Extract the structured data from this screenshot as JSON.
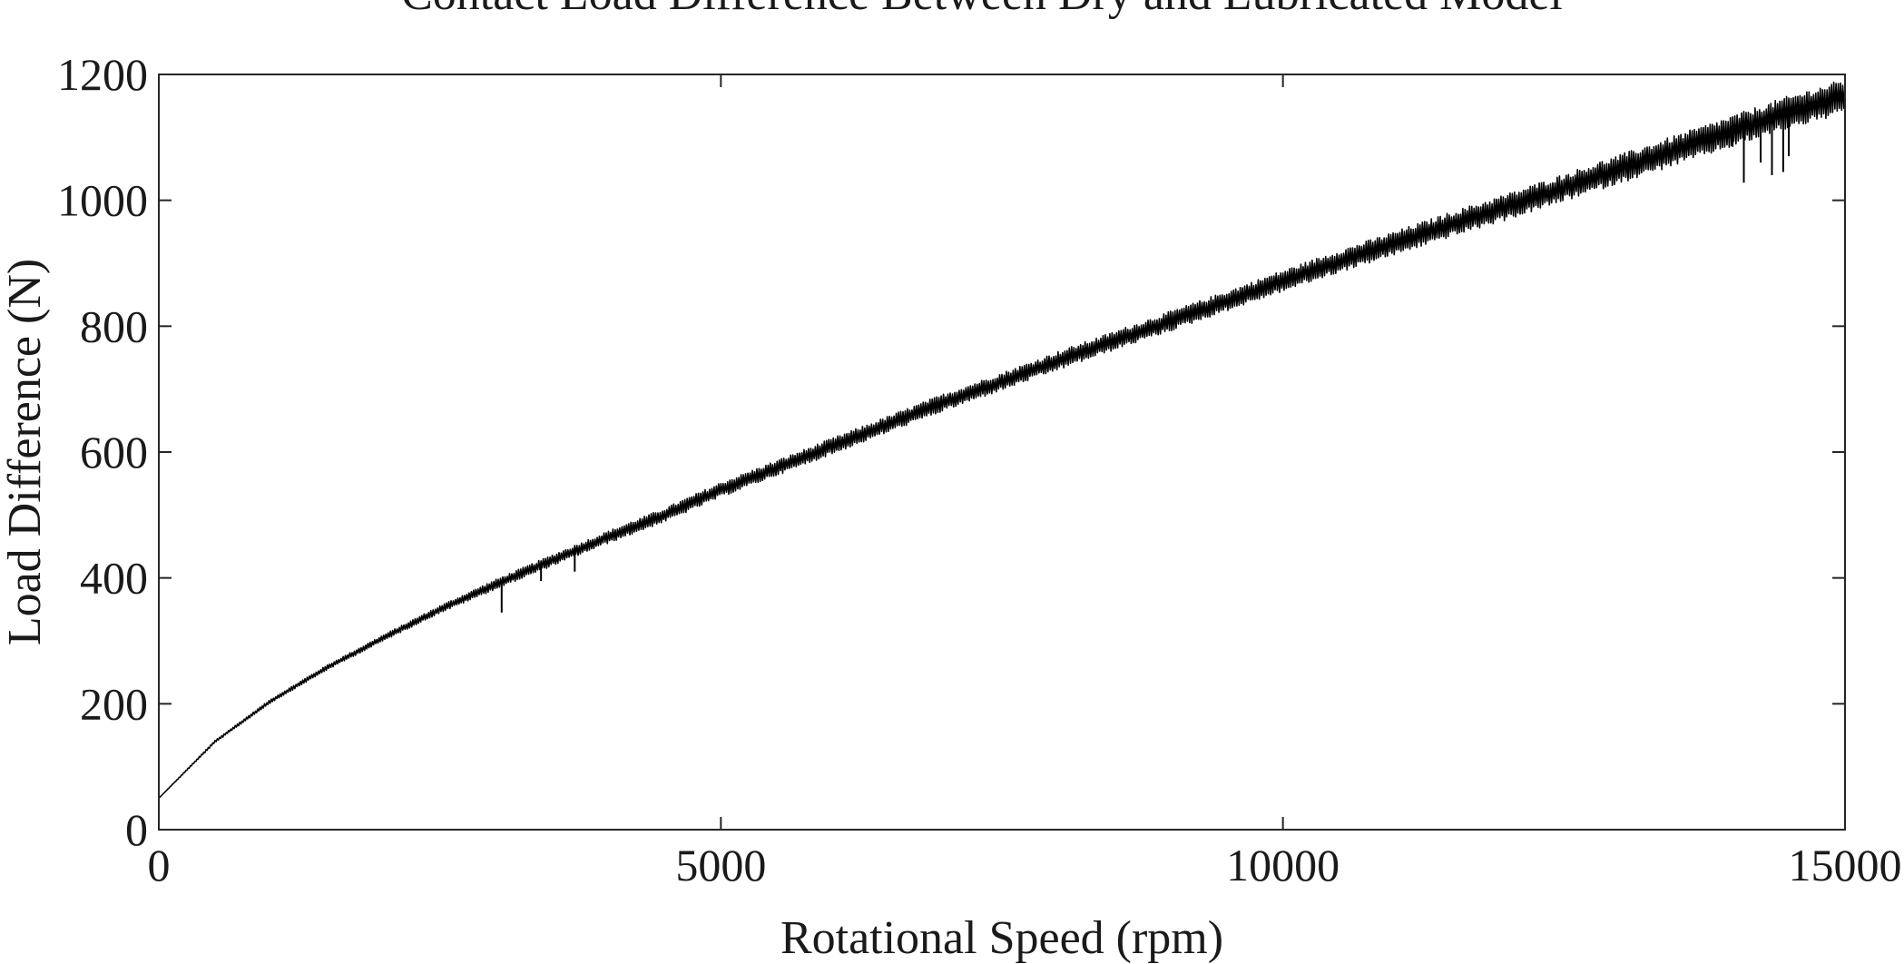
{
  "chart_data": {
    "type": "line",
    "title": "Contact Load Difference Between Dry and Lubricated Model",
    "xlabel": "Rotational Speed (rpm)",
    "ylabel": "Load Difference (N)",
    "xlim": [
      0,
      15000
    ],
    "ylim": [
      0,
      1200
    ],
    "xticks": [
      0,
      5000,
      10000,
      15000
    ],
    "xtick_labels": [
      "0",
      "5000",
      "10000",
      "15000"
    ],
    "yticks": [
      0,
      200,
      400,
      600,
      800,
      1000,
      1200
    ],
    "ytick_labels": [
      "0",
      "200",
      "400",
      "600",
      "800",
      "1000",
      "1200"
    ],
    "grid": false,
    "line_color": "#000000",
    "series": [
      {
        "x": [
          0,
          500,
          1000,
          1500,
          2000,
          2500,
          3000,
          3500,
          4000,
          4500,
          5000,
          5500,
          6000,
          6500,
          7000,
          7500,
          8000,
          8500,
          9000,
          9500,
          10000,
          10500,
          11000,
          11500,
          12000,
          12500,
          13000,
          13500,
          14000,
          14500,
          15000
        ],
        "y": [
          50,
          140,
          205,
          258,
          305,
          350,
          390,
          428,
          465,
          500,
          540,
          575,
          610,
          645,
          680,
          712,
          745,
          777,
          808,
          840,
          872,
          903,
          932,
          962,
          990,
          1020,
          1050,
          1080,
          1110,
          1140,
          1165
        ],
        "band_halfwidth": [
          0,
          2,
          3,
          4,
          5,
          6,
          8,
          9,
          10,
          11,
          12,
          12,
          13,
          13,
          14,
          14,
          15,
          15,
          16,
          16,
          17,
          18,
          19,
          20,
          21,
          22,
          23,
          24,
          25,
          26,
          28
        ]
      }
    ],
    "spikes": [
      {
        "x": 3050,
        "y": 345
      },
      {
        "x": 3400,
        "y": 395
      },
      {
        "x": 3700,
        "y": 410
      },
      {
        "x": 14000,
        "y": 1085
      },
      {
        "x": 14100,
        "y": 1028
      },
      {
        "x": 14250,
        "y": 1060
      },
      {
        "x": 14350,
        "y": 1040
      },
      {
        "x": 14450,
        "y": 1045
      },
      {
        "x": 14500,
        "y": 1070
      }
    ]
  }
}
